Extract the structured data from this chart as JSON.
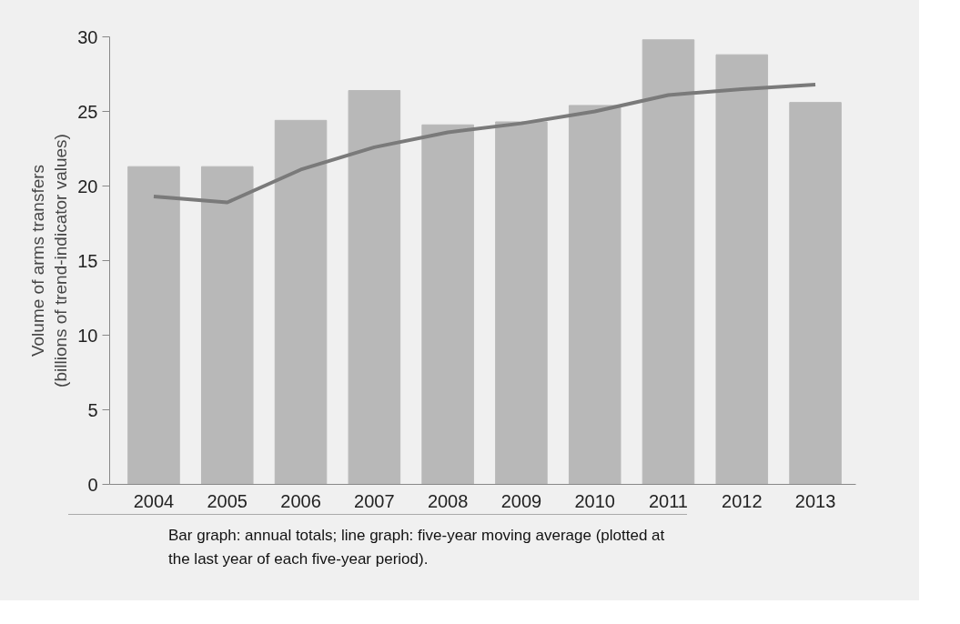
{
  "chart_data": {
    "type": "bar",
    "ylabel": "Volume of arms transfers\n(billions of trend-indicator values)",
    "categories": [
      "2004",
      "2005",
      "2006",
      "2007",
      "2008",
      "2009",
      "2010",
      "2011",
      "2012",
      "2013"
    ],
    "series": [
      {
        "color": "#b8b8b8",
        "values": [
          21.3,
          21.3,
          24.4,
          26.4,
          24.1,
          24.3,
          25.4,
          29.8,
          28.8,
          25.6
        ]
      },
      {
        "type": "line",
        "color": "#7a7a7a",
        "values": [
          19.3,
          18.9,
          21.1,
          22.6,
          23.6,
          24.2,
          25.0,
          26.1,
          26.5,
          26.8
        ]
      }
    ],
    "ylim": [
      0,
      30
    ],
    "yticks": [
      0,
      5,
      10,
      15,
      20,
      25,
      30
    ],
    "grid": false,
    "annotations": [
      "Bar graph: annual totals; line graph: five-year moving average (plotted at the last year of each five-year period)."
    ]
  }
}
